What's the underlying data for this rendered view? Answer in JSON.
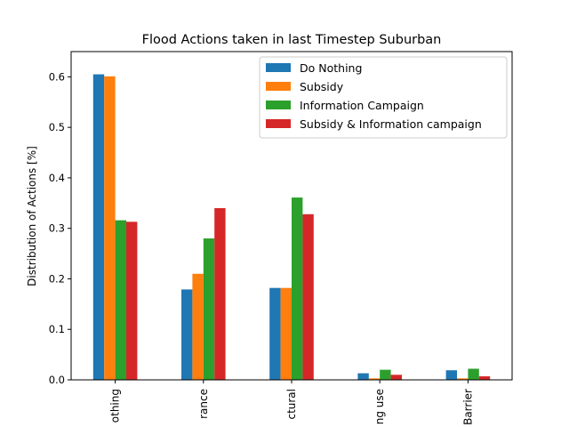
{
  "chart_data": {
    "type": "bar",
    "title": "Flood Actions taken in last Timestep Suburban",
    "xlabel": "",
    "ylabel": "Distribution of Actions [%]",
    "ylim": [
      0,
      0.65
    ],
    "yticks": [
      0.0,
      0.1,
      0.2,
      0.3,
      0.4,
      0.5,
      0.6
    ],
    "ytick_labels": [
      "0.0",
      "0.1",
      "0.2",
      "0.3",
      "0.4",
      "0.5",
      "0.6"
    ],
    "categories": [
      "othing",
      "rance",
      "ctural",
      "ng use",
      "Barrier"
    ],
    "legend_position": "top-right",
    "grid": false,
    "series": [
      {
        "name": "Do Nothing",
        "color": "#1f77b4",
        "values": [
          0.605,
          0.179,
          0.182,
          0.013,
          0.019
        ]
      },
      {
        "name": "Subsidy",
        "color": "#ff7f0e",
        "values": [
          0.601,
          0.21,
          0.182,
          0.003,
          0.003
        ]
      },
      {
        "name": "Information Campaign",
        "color": "#2ca02c",
        "values": [
          0.316,
          0.28,
          0.361,
          0.02,
          0.022
        ]
      },
      {
        "name": "Subsidy & Information campaign",
        "color": "#d62728",
        "values": [
          0.313,
          0.34,
          0.328,
          0.01,
          0.007
        ]
      }
    ]
  }
}
